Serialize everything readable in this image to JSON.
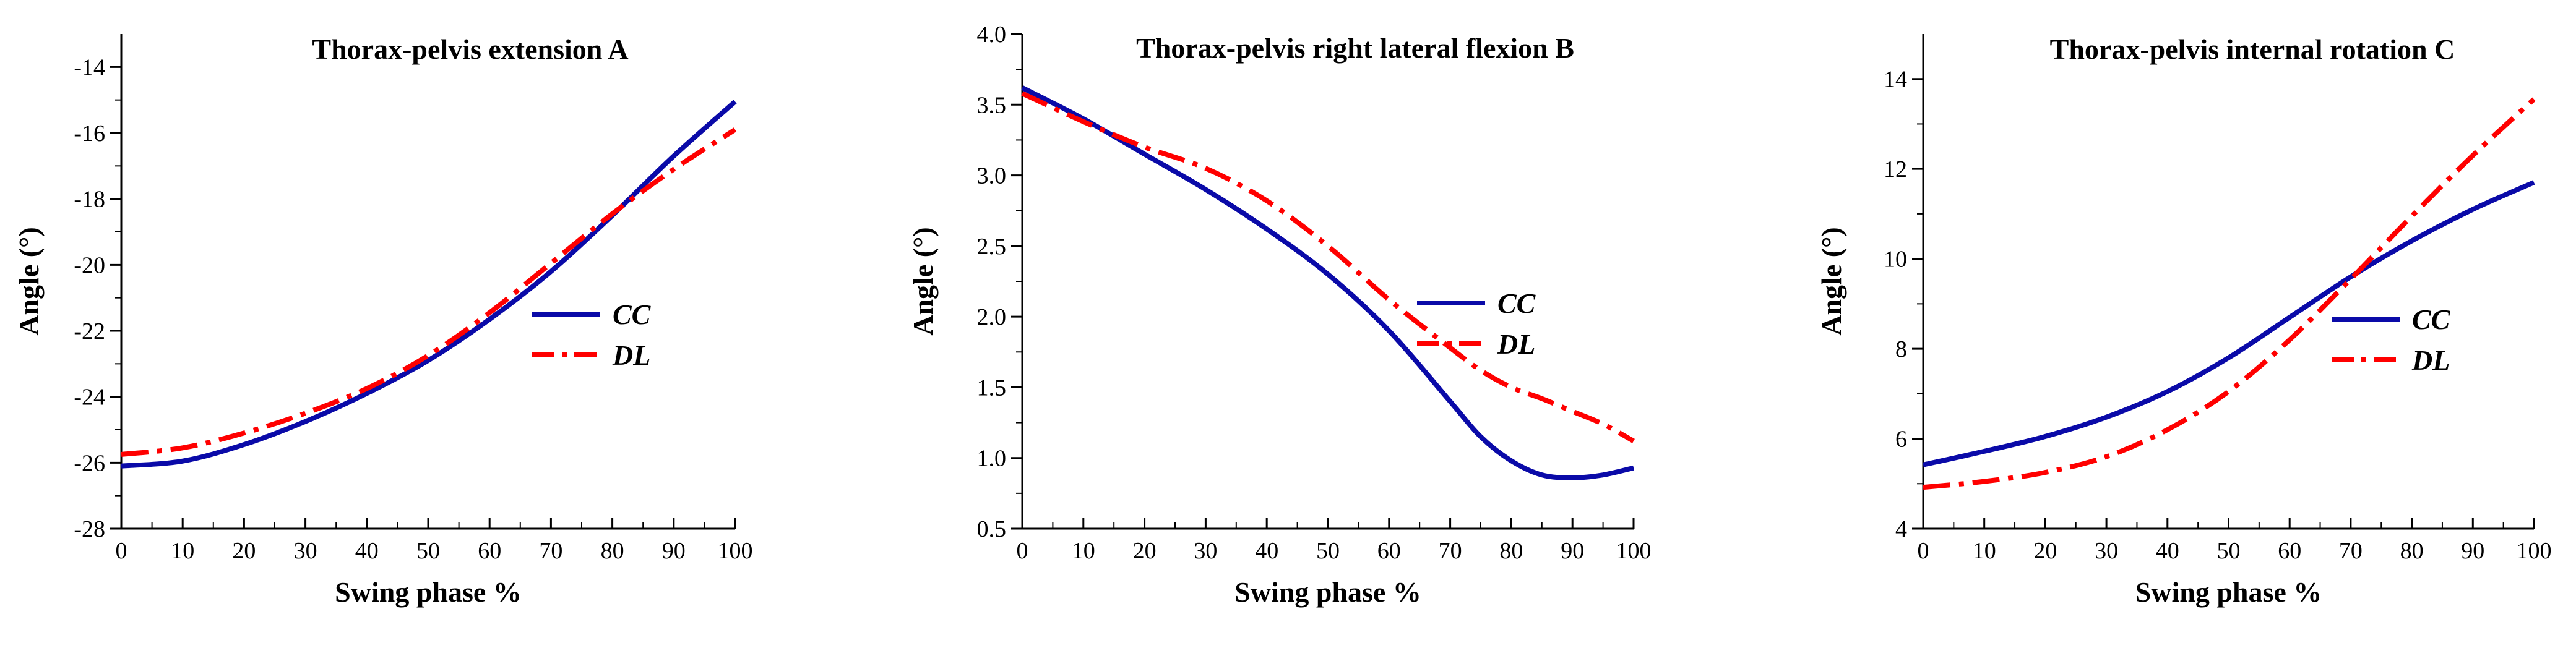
{
  "colors": {
    "cc": "#0a0aa8",
    "dl": "#ff0000",
    "axis": "#000000"
  },
  "chart_data": [
    {
      "id": "A",
      "type": "line",
      "title": "Thorax-pelvis extension  A",
      "xlabel": "Swing phase %",
      "ylabel": "Angle (°)",
      "xlim": [
        0,
        100
      ],
      "ylim": [
        -28,
        -13
      ],
      "xticks": [
        0,
        10,
        20,
        30,
        40,
        50,
        60,
        70,
        80,
        90,
        100
      ],
      "yticks": [
        -28,
        -26,
        -24,
        -22,
        -20,
        -18,
        -16,
        -14
      ],
      "x": [
        0,
        10,
        20,
        30,
        40,
        50,
        60,
        70,
        80,
        90,
        100
      ],
      "series": [
        {
          "name": "CC",
          "values": [
            -26.1,
            -25.95,
            -25.45,
            -24.75,
            -23.9,
            -22.9,
            -21.65,
            -20.2,
            -18.5,
            -16.7,
            -15.05
          ]
        },
        {
          "name": "DL",
          "values": [
            -25.75,
            -25.55,
            -25.1,
            -24.5,
            -23.75,
            -22.75,
            -21.45,
            -19.95,
            -18.45,
            -17.1,
            -15.9
          ]
        }
      ],
      "legend": "center-right"
    },
    {
      "id": "B",
      "type": "line",
      "title": "Thorax-pelvis right lateral flexion  B",
      "xlabel": "Swing phase %",
      "ylabel": "Angle (°)",
      "xlim": [
        0,
        100
      ],
      "ylim": [
        0.5,
        4.0
      ],
      "xticks": [
        0,
        10,
        20,
        30,
        40,
        50,
        60,
        70,
        80,
        90,
        100
      ],
      "yticks": [
        "0.5",
        "1.0",
        "1.5",
        "2.0",
        "2.5",
        "3.0",
        "3.5",
        "4.0"
      ],
      "x": [
        0,
        10,
        20,
        30,
        40,
        50,
        60,
        70,
        75,
        80,
        85,
        90,
        95,
        100
      ],
      "series": [
        {
          "name": "CC",
          "values": [
            3.62,
            3.4,
            3.15,
            2.9,
            2.62,
            2.3,
            1.9,
            1.4,
            1.15,
            0.98,
            0.88,
            0.86,
            0.88,
            0.93
          ]
        },
        {
          "name": "DL",
          "values": [
            3.58,
            3.38,
            3.2,
            3.05,
            2.82,
            2.5,
            2.12,
            1.78,
            1.62,
            1.5,
            1.42,
            1.33,
            1.24,
            1.12
          ]
        }
      ],
      "legend": "center-right"
    },
    {
      "id": "C",
      "type": "line",
      "title": "Thorax-pelvis internal rotation  C",
      "xlabel": "Swing phase %",
      "ylabel": "Angle (°)",
      "xlim": [
        0,
        100
      ],
      "ylim": [
        4,
        15
      ],
      "xticks": [
        0,
        10,
        20,
        30,
        40,
        50,
        60,
        70,
        80,
        90,
        100
      ],
      "yticks": [
        4,
        6,
        8,
        10,
        12,
        14
      ],
      "x": [
        0,
        10,
        20,
        30,
        40,
        50,
        60,
        70,
        80,
        90,
        100
      ],
      "series": [
        {
          "name": "CC",
          "values": [
            5.42,
            5.72,
            6.05,
            6.48,
            7.05,
            7.8,
            8.7,
            9.6,
            10.4,
            11.1,
            11.7
          ]
        },
        {
          "name": "DL",
          "values": [
            4.92,
            5.05,
            5.25,
            5.6,
            6.2,
            7.05,
            8.2,
            9.55,
            10.95,
            12.3,
            13.55
          ]
        }
      ],
      "legend": "center-right"
    }
  ]
}
